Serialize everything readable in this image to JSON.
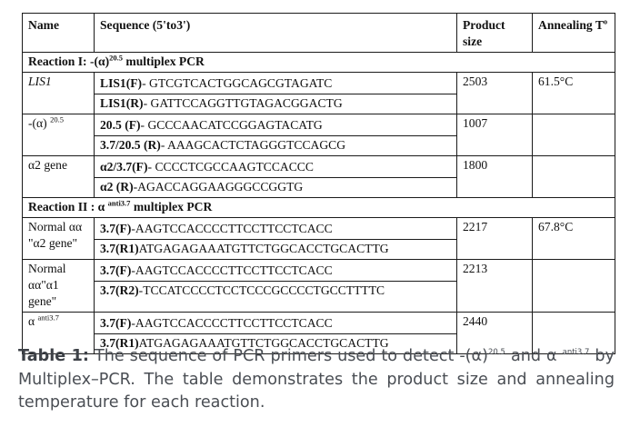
{
  "table": {
    "headers": {
      "name": "Name",
      "sequence": "Sequence (5'to3')",
      "product_size": "Product size",
      "annealing": "Annealing T",
      "annealing_sup": "o"
    },
    "reaction1": {
      "label": "Reaction I",
      "mid": ": -(α)",
      "sup": "20.5",
      "suffix": " multiplex PCR"
    },
    "rows1": [
      {
        "name": "LIS1",
        "name_sup": "",
        "name_italic": true,
        "primers": [
          {
            "label": "LIS1(F)",
            "seq": "- GTCGTCACTGGCAGCGTAGATC"
          },
          {
            "label": "LIS1(R)",
            "seq": "- GATTCCAGGTTGTAGACGGACTG"
          }
        ],
        "size": "2503",
        "annealing": "61.5°C"
      },
      {
        "name": "-(α) ",
        "name_sup": "20.5",
        "name_italic": false,
        "primers": [
          {
            "label": "20.5 (F)",
            "seq": "- GCCCAACATCCGGAGTACATG"
          },
          {
            "label": "3.7/20.5 (R)",
            "seq": "- AAAGCACTCTAGGGTCCAGCG"
          }
        ],
        "size": "1007",
        "annealing": ""
      },
      {
        "name": "α2 gene",
        "name_sup": "",
        "name_italic": false,
        "primers": [
          {
            "label": "α2/3.7(F)",
            "seq": "- CCCCTCGCCAAGTCCACCC"
          },
          {
            "label": "α2 (R)",
            "seq": "-AGACCAGGAAGGGCCGGTG"
          }
        ],
        "size": "1800",
        "annealing": ""
      }
    ],
    "reaction2": {
      "label": "Reaction II",
      "mid": " : α ",
      "sup": "anti3.7",
      "suffix": "  multiplex PCR"
    },
    "rows2": [
      {
        "name": "Normal αα \"α2 gene\"",
        "name_sup": "",
        "name_italic": false,
        "primers": [
          {
            "label": "3.7(F)",
            "seq": "-AAGTCCACCCCTTCCTTCCTCACC"
          },
          {
            "label": "3.7(R1)",
            "seq": "ATGAGAGAAATGTTCTGGCACCTGCACTTG"
          }
        ],
        "size": "2217",
        "annealing": "67.8°C"
      },
      {
        "name": "Normal αα\"α1 gene\"",
        "name_sup": "",
        "name_italic": false,
        "primers": [
          {
            "label": "3.7(F)",
            "seq": "-AAGTCCACCCCTTCCTTCCTCACC"
          },
          {
            "label": "3.7(R2)",
            "seq": "-TCCATCCCCTCCTCCCGCCCCTGCCTTTTC"
          }
        ],
        "size": "2213",
        "annealing": ""
      },
      {
        "name": "α ",
        "name_sup": "anti3.7",
        "name_italic": false,
        "primers": [
          {
            "label": "3.7(F)",
            "seq": "-AAGTCCACCCCTTCCTTCCTCACC"
          },
          {
            "label": "3.7(R1)",
            "seq": "ATGAGAGAAATGTTCTGGCACCTGCACTTG"
          }
        ],
        "size": "2440",
        "annealing": ""
      }
    ]
  },
  "caption": {
    "label": "Table 1:",
    "t1": " The sequence of PCR primers used to detect -(α)",
    "sup1": "20.5",
    "t2": " and α ",
    "sup2": "anti3.7",
    "t3": "  by Multiplex–PCR. The table demonstrates the product size and annealing temperature for each reaction."
  }
}
